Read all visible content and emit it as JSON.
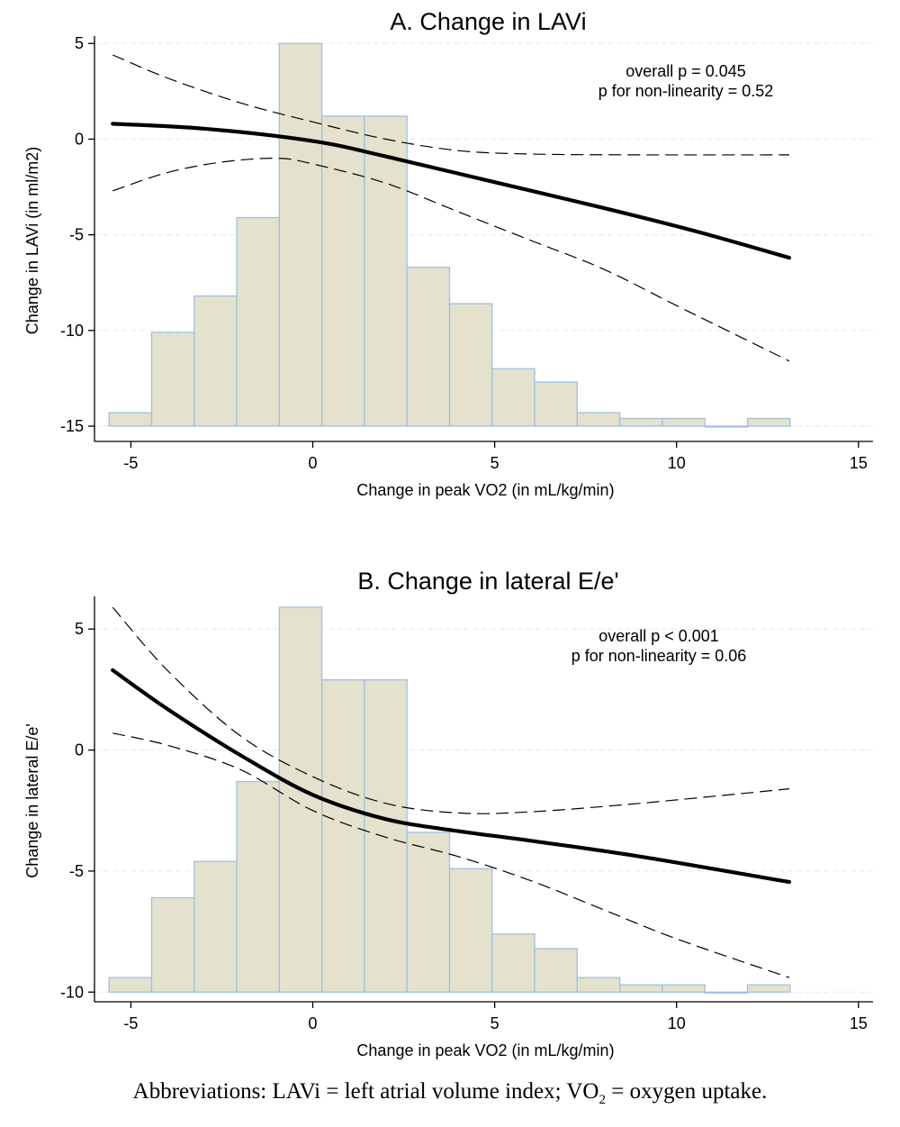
{
  "chart_data": [
    {
      "type": "histogram with fitted spline",
      "title": "A. Change in LAVi",
      "xlabel": "Change in peak VO2 (in mL/kg/min)",
      "ylabel": "Change in LAVi (in ml/m2)",
      "xlim": [
        -6,
        15.4
      ],
      "ylim": [
        -15.8,
        5.2
      ],
      "xticks": [
        -5,
        0,
        5,
        10,
        15
      ],
      "yticks": [
        5,
        0,
        -5,
        -10,
        -15
      ],
      "gridlines": true,
      "annotation": [
        "overall p = 0.045",
        "p for non-linearity = 0.52"
      ],
      "histogram": {
        "baseline": -15,
        "bin_edges": [
          -5.6,
          -4.43,
          -3.26,
          -2.09,
          -0.92,
          0.25,
          1.42,
          2.59,
          3.76,
          4.93,
          6.1,
          7.27,
          8.44,
          9.61,
          10.78,
          11.95,
          13.12
        ],
        "tops": [
          -14.3,
          -10.1,
          -8.2,
          -4.1,
          5.0,
          1.2,
          1.2,
          -6.7,
          -8.6,
          -12.0,
          -12.7,
          -14.3,
          -14.6,
          -14.6,
          -15.0,
          -14.6
        ]
      },
      "fit": {
        "x": [
          -5.5,
          -3,
          0,
          2,
          5,
          8,
          10.5,
          13.1
        ],
        "y": [
          0.8,
          0.55,
          -0.1,
          -0.9,
          -2.25,
          -3.6,
          -4.8,
          -6.2
        ]
      },
      "ci_upper": {
        "x": [
          -5.5,
          -4,
          -2,
          0,
          2,
          4,
          6,
          9,
          13.1
        ],
        "y": [
          4.4,
          3.2,
          1.9,
          0.9,
          0.0,
          -0.6,
          -0.78,
          -0.82,
          -0.82
        ]
      },
      "ci_lower": {
        "x": [
          -5.5,
          -4,
          -2.5,
          -1,
          0,
          2,
          4,
          6,
          8,
          10,
          13.1
        ],
        "y": [
          -2.7,
          -1.75,
          -1.2,
          -1.0,
          -1.3,
          -2.3,
          -3.8,
          -5.3,
          -6.8,
          -8.7,
          -11.6
        ]
      }
    },
    {
      "type": "histogram with fitted spline",
      "title": "B. Change in lateral E/e'",
      "xlabel": "Change in peak VO2 (in mL/kg/min)",
      "ylabel": "Change in lateral E/e'",
      "xlim": [
        -6,
        15.4
      ],
      "ylim": [
        -10.4,
        6.2
      ],
      "xticks": [
        -5,
        0,
        5,
        10,
        15
      ],
      "yticks": [
        5,
        0,
        -5,
        -10
      ],
      "gridlines": true,
      "annotation": [
        "overall p < 0.001",
        "p for non-linearity = 0.06"
      ],
      "histogram": {
        "baseline": -10,
        "bin_edges": [
          -5.6,
          -4.43,
          -3.26,
          -2.09,
          -0.92,
          0.25,
          1.42,
          2.59,
          3.76,
          4.93,
          6.1,
          7.27,
          8.44,
          9.61,
          10.78,
          11.95,
          13.12
        ],
        "tops": [
          -9.4,
          -6.1,
          -4.6,
          -1.3,
          5.9,
          2.9,
          2.9,
          -3.4,
          -4.9,
          -7.6,
          -8.2,
          -9.4,
          -9.7,
          -9.7,
          -10.0,
          -9.7
        ]
      },
      "fit": {
        "x": [
          -5.5,
          -4,
          -2,
          0,
          2,
          4,
          6,
          9,
          13.1
        ],
        "y": [
          3.3,
          1.7,
          -0.2,
          -1.85,
          -2.85,
          -3.35,
          -3.75,
          -4.4,
          -5.45
        ]
      },
      "ci_upper": {
        "x": [
          -5.5,
          -4,
          -2,
          0,
          2,
          4,
          6,
          9,
          13.1
        ],
        "y": [
          5.9,
          3.3,
          0.6,
          -1.1,
          -2.2,
          -2.6,
          -2.55,
          -2.2,
          -1.6
        ]
      },
      "ci_lower": {
        "x": [
          -5.5,
          -4,
          -2,
          0,
          2,
          4,
          6,
          8,
          10,
          13.1
        ],
        "y": [
          0.7,
          0.2,
          -0.8,
          -2.5,
          -3.6,
          -4.4,
          -5.4,
          -6.6,
          -7.8,
          -9.4
        ]
      }
    }
  ],
  "footnote": {
    "prefix": "Abbreviations: LAVi = left atrial volume index; VO",
    "sub": "2",
    "suffix": " = oxygen uptake."
  }
}
